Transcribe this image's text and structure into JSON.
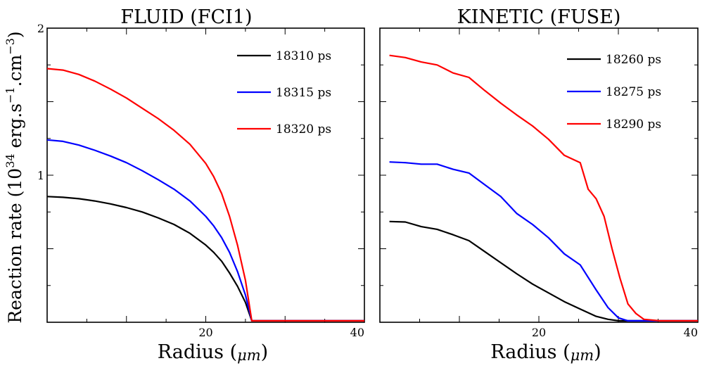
{
  "figure": {
    "ylabel_main": "Reaction rate (10",
    "ylabel_exp1": "34",
    "ylabel_mid": " erg.s",
    "ylabel_exp2": "−1",
    "ylabel_mid2": ".cm",
    "ylabel_exp3": "−3",
    "ylabel_end": ")"
  },
  "chart_data": [
    {
      "type": "line",
      "title": "FLUID (FCI1)",
      "xlabel_text": "Radius (",
      "xlabel_unit": "μm",
      "xlabel_close": ")",
      "xlim": [
        0,
        40
      ],
      "ylim": [
        0,
        2
      ],
      "xticks": [
        20,
        40
      ],
      "xtick_labels": [
        "20",
        "40"
      ],
      "yticks": [
        1,
        2
      ],
      "ytick_labels": [
        "1",
        "2"
      ],
      "legend_position": "top-right",
      "grid": false,
      "series": [
        {
          "name": "18310 ps",
          "color": "#000000",
          "x": [
            0,
            2,
            4,
            6,
            8,
            10,
            12,
            14,
            16,
            18,
            20,
            21,
            22,
            23,
            24,
            25,
            25.8,
            27,
            30,
            35,
            40
          ],
          "y": [
            0.855,
            0.85,
            0.84,
            0.825,
            0.805,
            0.78,
            0.75,
            0.71,
            0.665,
            0.605,
            0.525,
            0.475,
            0.415,
            0.335,
            0.245,
            0.135,
            0.01,
            0.01,
            0.01,
            0.01,
            0.01
          ]
        },
        {
          "name": "18315 ps",
          "color": "#0000ff",
          "x": [
            0,
            2,
            4,
            6,
            8,
            10,
            12,
            14,
            16,
            18,
            20,
            21,
            22,
            23,
            24,
            25,
            25.8,
            27,
            30,
            35,
            40
          ],
          "y": [
            1.24,
            1.23,
            1.205,
            1.17,
            1.13,
            1.085,
            1.03,
            0.97,
            0.905,
            0.825,
            0.72,
            0.655,
            0.575,
            0.475,
            0.345,
            0.185,
            0.01,
            0.01,
            0.01,
            0.01,
            0.01
          ]
        },
        {
          "name": "18320 ps",
          "color": "#ff0000",
          "x": [
            0,
            2,
            4,
            6,
            8,
            10,
            12,
            14,
            16,
            18,
            20,
            21,
            22,
            23,
            24,
            25,
            25.8,
            27,
            30,
            35,
            40
          ],
          "y": [
            1.725,
            1.715,
            1.685,
            1.64,
            1.585,
            1.525,
            1.455,
            1.385,
            1.305,
            1.21,
            1.08,
            0.99,
            0.875,
            0.72,
            0.525,
            0.285,
            0.01,
            0.01,
            0.01,
            0.01,
            0.01
          ]
        }
      ]
    },
    {
      "type": "line",
      "title": "KINETIC (FUSE)",
      "xlabel_text": "Radius (",
      "xlabel_unit": "μm",
      "xlabel_close": ")",
      "xlim": [
        0,
        40
      ],
      "ylim": [
        0,
        2
      ],
      "xticks": [
        20,
        40
      ],
      "xtick_labels": [
        "20",
        "40"
      ],
      "yticks": [
        1,
        2
      ],
      "legend_position": "top-right",
      "grid": false,
      "series": [
        {
          "name": "18260 ps",
          "color": "#000000",
          "x": [
            1.2,
            3.2,
            5.2,
            7.2,
            9.2,
            11.2,
            13.2,
            15.2,
            17.2,
            19.2,
            21.2,
            23.2,
            25.2,
            27.2,
            28.7,
            30.0,
            31.2,
            33.2,
            35.2,
            37.2,
            40
          ],
          "y": [
            0.685,
            0.682,
            0.65,
            0.632,
            0.595,
            0.555,
            0.48,
            0.405,
            0.33,
            0.26,
            0.2,
            0.14,
            0.09,
            0.04,
            0.02,
            0.01,
            0.01,
            0.01,
            0.01,
            0.01,
            0.01
          ]
        },
        {
          "name": "18275 ps",
          "color": "#0000ff",
          "x": [
            1.2,
            3.2,
            5.2,
            7.2,
            9.2,
            11.2,
            13.2,
            15.2,
            17.2,
            19.2,
            21.2,
            23.2,
            25.2,
            27.2,
            28.7,
            30.0,
            31.2,
            33.2,
            35.2,
            37.2,
            40
          ],
          "y": [
            1.09,
            1.085,
            1.075,
            1.075,
            1.04,
            1.015,
            0.935,
            0.855,
            0.74,
            0.665,
            0.575,
            0.465,
            0.39,
            0.22,
            0.1,
            0.03,
            0.01,
            0.01,
            0.01,
            0.01,
            0.01
          ]
        },
        {
          "name": "18290 ps",
          "color": "#ff0000",
          "x": [
            1.2,
            3.2,
            5.2,
            7.2,
            9.2,
            11.2,
            13.2,
            15.2,
            17.2,
            19.2,
            21.2,
            23.2,
            25.2,
            26.2,
            27.2,
            28.2,
            29.2,
            30.2,
            31.2,
            32.2,
            33.2,
            35.2,
            37.2,
            40
          ],
          "y": [
            1.815,
            1.8,
            1.77,
            1.75,
            1.695,
            1.665,
            1.575,
            1.49,
            1.41,
            1.335,
            1.245,
            1.135,
            1.085,
            0.905,
            0.84,
            0.72,
            0.5,
            0.3,
            0.125,
            0.06,
            0.02,
            0.01,
            0.01,
            0.01
          ]
        }
      ]
    }
  ]
}
